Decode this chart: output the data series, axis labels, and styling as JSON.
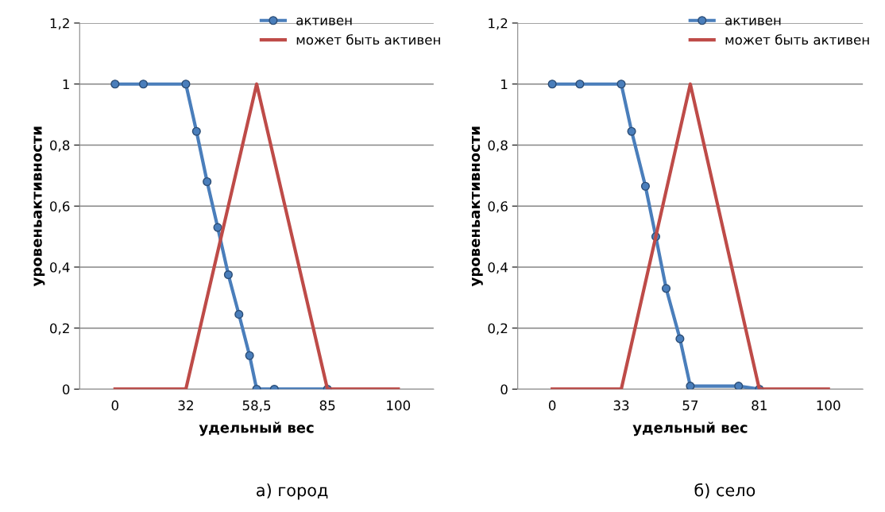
{
  "chart_data": [
    {
      "type": "line",
      "xlabel": "удельный вес",
      "ylabel": "уровеньактивности",
      "annotations": [
        "а) город"
      ],
      "categories": [
        "0",
        null,
        null,
        null,
        null,
        null,
        null,
        null,
        null,
        null,
        null,
        null,
        null,
        null,
        null,
        null,
        null,
        null,
        null,
        null,
        "32",
        null,
        null,
        null,
        null,
        null,
        null,
        null,
        null,
        null,
        null,
        null,
        null,
        null,
        null,
        null,
        null,
        null,
        null,
        null,
        "58,5",
        null,
        null,
        null,
        null,
        null,
        null,
        null,
        null,
        null,
        null,
        null,
        null,
        null,
        null,
        null,
        null,
        null,
        null,
        null,
        "85",
        null,
        null,
        null,
        null,
        null,
        null,
        null,
        null,
        null,
        null,
        null,
        null,
        null,
        null,
        null,
        null,
        null,
        null,
        null,
        "100"
      ],
      "ylim": [
        0,
        1.2
      ],
      "yticks": [
        0,
        {
          "value": 0.2,
          "label": "0,2"
        },
        {
          "value": 0.4,
          "label": "0,4"
        },
        {
          "value": 0.6,
          "label": "0,6"
        },
        {
          "value": 0.8,
          "label": "0,8"
        },
        1,
        {
          "value": 1.2,
          "label": "1,2"
        }
      ],
      "grid": "y",
      "legend": "top right",
      "series": [
        {
          "name": "активен",
          "color": "#4a7ebb",
          "marker": "circle",
          "values": [
            1,
            null,
            null,
            null,
            null,
            null,
            null,
            null,
            1,
            null,
            null,
            null,
            null,
            null,
            null,
            null,
            null,
            null,
            null,
            null,
            1,
            null,
            null,
            0.845,
            null,
            null,
            0.68,
            null,
            null,
            0.53,
            null,
            null,
            0.375,
            null,
            null,
            0.245,
            null,
            null,
            0.11,
            null,
            0,
            null,
            null,
            null,
            null,
            0,
            null,
            null,
            null,
            null,
            null,
            null,
            null,
            null,
            null,
            null,
            null,
            null,
            null,
            null,
            0,
            null,
            null,
            null,
            null,
            null,
            null,
            null,
            null,
            null,
            null,
            null,
            null,
            null,
            null,
            null,
            null,
            null,
            null,
            null,
            null
          ]
        },
        {
          "name": "может быть активен",
          "color": "#be4b48",
          "values": [
            0,
            null,
            null,
            null,
            null,
            null,
            null,
            null,
            null,
            null,
            null,
            null,
            null,
            null,
            null,
            null,
            null,
            null,
            null,
            null,
            0,
            null,
            null,
            null,
            null,
            null,
            null,
            null,
            null,
            null,
            null,
            null,
            null,
            null,
            null,
            null,
            null,
            null,
            null,
            null,
            1,
            null,
            null,
            null,
            null,
            null,
            null,
            null,
            null,
            null,
            null,
            null,
            null,
            null,
            null,
            null,
            null,
            null,
            null,
            null,
            0,
            null,
            null,
            null,
            null,
            null,
            null,
            null,
            null,
            null,
            null,
            null,
            null,
            null,
            null,
            null,
            null,
            null,
            null,
            null,
            0
          ]
        }
      ]
    },
    {
      "type": "line",
      "xlabel": "удельный вес",
      "ylabel": "уровеньактивности",
      "annotations": [
        "б) село"
      ],
      "categories": [
        "0",
        null,
        null,
        null,
        null,
        null,
        null,
        null,
        null,
        null,
        null,
        null,
        null,
        null,
        null,
        null,
        null,
        null,
        null,
        null,
        "33",
        null,
        null,
        null,
        null,
        null,
        null,
        null,
        null,
        null,
        null,
        null,
        null,
        null,
        null,
        null,
        null,
        null,
        null,
        null,
        "57",
        null,
        null,
        null,
        null,
        null,
        null,
        null,
        null,
        null,
        null,
        null,
        null,
        null,
        null,
        null,
        null,
        null,
        null,
        null,
        "81",
        null,
        null,
        null,
        null,
        null,
        null,
        null,
        null,
        null,
        null,
        null,
        null,
        null,
        null,
        null,
        null,
        null,
        null,
        null,
        "100"
      ],
      "ylim": [
        0,
        1.2
      ],
      "yticks": [
        0,
        {
          "value": 0.2,
          "label": "0,2"
        },
        {
          "value": 0.4,
          "label": "0,4"
        },
        {
          "value": 0.6,
          "label": "0,6"
        },
        {
          "value": 0.8,
          "label": "0,8"
        },
        1,
        {
          "value": 1.2,
          "label": "1,2"
        }
      ],
      "grid": "y",
      "legend": "top right",
      "series": [
        {
          "name": "активен",
          "color": "#4a7ebb",
          "marker": "circle",
          "values": [
            1,
            null,
            null,
            null,
            null,
            null,
            null,
            null,
            1,
            null,
            null,
            null,
            null,
            null,
            null,
            null,
            null,
            null,
            null,
            null,
            1,
            null,
            null,
            0.845,
            null,
            null,
            null,
            0.665,
            null,
            null,
            0.5,
            null,
            null,
            0.33,
            null,
            null,
            null,
            0.165,
            null,
            null,
            0.01,
            null,
            null,
            null,
            null,
            null,
            null,
            null,
            null,
            null,
            null,
            null,
            null,
            null,
            0.01,
            null,
            null,
            null,
            null,
            null,
            0,
            null,
            null,
            null,
            null,
            null,
            null,
            null,
            null,
            null,
            null,
            null,
            null,
            null,
            null,
            null,
            null,
            null,
            null,
            null,
            null
          ]
        },
        {
          "name": "может быть активен",
          "color": "#be4b48",
          "values": [
            0,
            null,
            null,
            null,
            null,
            null,
            null,
            null,
            null,
            null,
            null,
            null,
            null,
            null,
            null,
            null,
            null,
            null,
            null,
            null,
            0,
            null,
            null,
            null,
            null,
            null,
            null,
            null,
            null,
            null,
            null,
            null,
            null,
            null,
            null,
            null,
            null,
            null,
            null,
            null,
            1,
            null,
            null,
            null,
            null,
            null,
            null,
            null,
            null,
            null,
            null,
            null,
            null,
            null,
            null,
            null,
            null,
            null,
            null,
            null,
            0,
            null,
            null,
            null,
            null,
            null,
            null,
            null,
            null,
            null,
            null,
            null,
            null,
            null,
            null,
            null,
            null,
            null,
            null,
            null,
            0
          ]
        }
      ]
    }
  ]
}
